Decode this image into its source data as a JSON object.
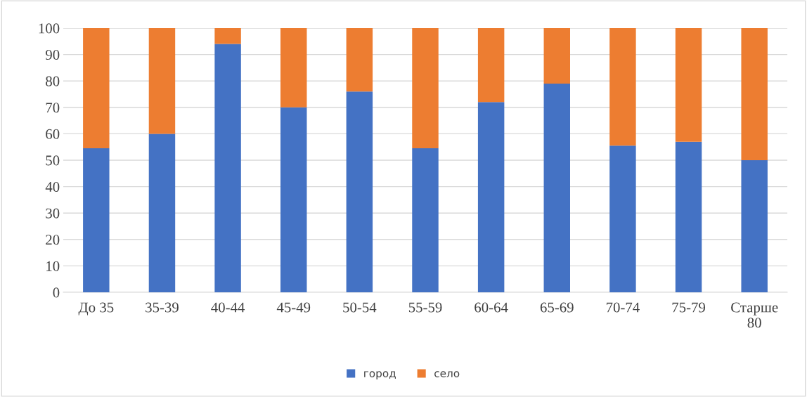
{
  "chart_data": {
    "type": "bar",
    "stacked": true,
    "categories": [
      "До 35",
      "35-39",
      "40-44",
      "45-49",
      "50-54",
      "55-59",
      "60-64",
      "65-69",
      "70-74",
      "75-79",
      "Старше\n80"
    ],
    "series": [
      {
        "name": "город",
        "color": "#4472c4",
        "values": [
          54.5,
          60,
          94,
          70,
          76,
          54.5,
          72,
          79,
          55.5,
          57,
          50
        ]
      },
      {
        "name": "село",
        "color": "#ed7d31",
        "values": [
          45.5,
          40,
          6,
          30,
          24,
          45.5,
          28,
          21,
          44.5,
          43,
          50
        ]
      }
    ],
    "ylim": [
      0,
      100
    ],
    "yticks": [
      0,
      10,
      20,
      30,
      40,
      50,
      60,
      70,
      80,
      90,
      100
    ],
    "grid": "y",
    "legend": "bottom"
  }
}
